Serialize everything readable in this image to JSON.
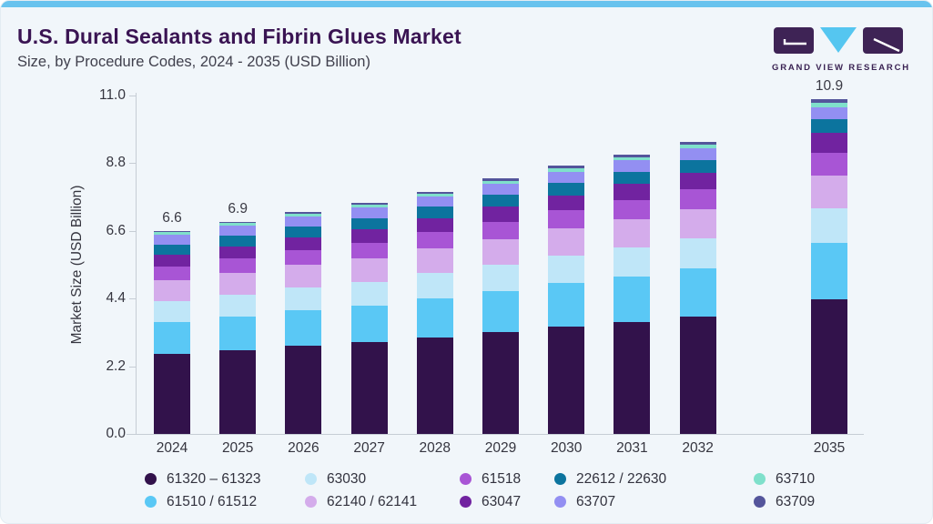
{
  "header": {
    "title": "U.S. Dural Sealants and Fibrin Glues Market",
    "subtitle": "Size, by Procedure Codes, 2024 - 2035 (USD Billion)",
    "logo_text": "GRAND VIEW RESEARCH"
  },
  "colors": {
    "accent_strip": "#68c3ee",
    "card_bg": "#f1f6fa",
    "title": "#3a1453",
    "subtitle": "#40404d",
    "axis_line": "#c6cdd5",
    "axis_text": "#35353f",
    "logo_dark": "#3e2355",
    "logo_blue": "#55c6f0"
  },
  "chart_data": {
    "type": "bar",
    "stacked": true,
    "title": "U.S. Dural Sealants and Fibrin Glues Market Size, by Procedure Codes, 2024 - 2035 (USD Billion)",
    "xlabel": "",
    "ylabel": "Market Size (USD Billion)",
    "ylim": [
      0,
      11.0
    ],
    "y_ticks": [
      "0.0",
      "2.2",
      "4.4",
      "6.6",
      "8.8",
      "11.0"
    ],
    "grid": false,
    "legend_position": "bottom",
    "categories": [
      "2024",
      "2025",
      "2026",
      "2027",
      "2028",
      "2029",
      "2030",
      "2031",
      "2032",
      "2035"
    ],
    "bar_labels": [
      "6.6",
      "6.9",
      "",
      "",
      "",
      "",
      "",
      "",
      "",
      "10.9"
    ],
    "series": [
      {
        "name": "61320 – 61323",
        "color": "#32124b",
        "values": [
          2.61,
          2.73,
          2.86,
          2.98,
          3.14,
          3.31,
          3.48,
          3.64,
          3.81,
          4.39
        ]
      },
      {
        "name": "61510 / 61512",
        "color": "#5ac8f5",
        "values": [
          1.04,
          1.09,
          1.15,
          1.2,
          1.27,
          1.34,
          1.42,
          1.49,
          1.56,
          1.82
        ]
      },
      {
        "name": "63030",
        "color": "#bfe6f8",
        "values": [
          0.68,
          0.71,
          0.74,
          0.77,
          0.81,
          0.85,
          0.9,
          0.94,
          0.98,
          1.12
        ]
      },
      {
        "name": "62140 / 62141",
        "color": "#d4aceb",
        "values": [
          0.68,
          0.71,
          0.74,
          0.76,
          0.8,
          0.84,
          0.87,
          0.91,
          0.95,
          1.07
        ]
      },
      {
        "name": "61518",
        "color": "#a855d5",
        "values": [
          0.44,
          0.46,
          0.48,
          0.5,
          0.53,
          0.56,
          0.59,
          0.61,
          0.64,
          0.74
        ]
      },
      {
        "name": "63047",
        "color": "#7123a0",
        "values": [
          0.37,
          0.39,
          0.41,
          0.43,
          0.45,
          0.48,
          0.5,
          0.53,
          0.55,
          0.64
        ]
      },
      {
        "name": "22612 / 22630",
        "color": "#0c749e",
        "values": [
          0.34,
          0.35,
          0.36,
          0.37,
          0.38,
          0.39,
          0.4,
          0.41,
          0.42,
          0.45
        ]
      },
      {
        "name": "63707",
        "color": "#938ff2",
        "values": [
          0.33,
          0.34,
          0.34,
          0.35,
          0.35,
          0.36,
          0.37,
          0.37,
          0.38,
          0.39
        ]
      },
      {
        "name": "63710",
        "color": "#7fe0cb",
        "values": [
          0.06,
          0.07,
          0.07,
          0.08,
          0.08,
          0.09,
          0.1,
          0.1,
          0.11,
          0.14
        ]
      },
      {
        "name": "63709",
        "color": "#54559b",
        "values": [
          0.05,
          0.05,
          0.06,
          0.06,
          0.07,
          0.08,
          0.08,
          0.09,
          0.1,
          0.12
        ]
      }
    ]
  }
}
